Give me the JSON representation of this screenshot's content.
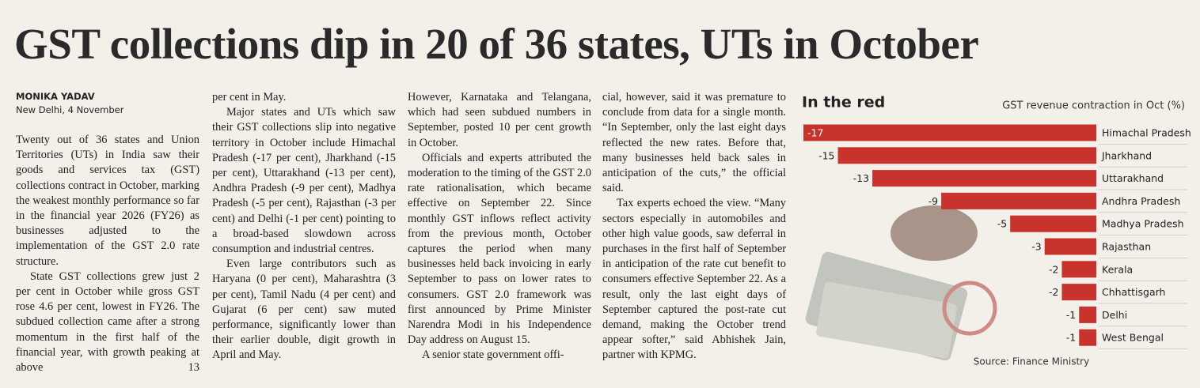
{
  "header": {
    "title": "GST collections dip in 20 of 36 states, UTs in October"
  },
  "article": {
    "byline": "MONIKA YADAV",
    "dateline": "New Delhi, 4 November",
    "columns": [
      [
        "Twenty out of 36 states and Union Territories (UTs) in India saw their goods and services tax (GST) collections contract in October, marking the weakest monthly performance so far in the financial year 2026 (FY26) as businesses adjusted to the implementation of the GST 2.0 rate structure.",
        "State GST collections grew just 2 per cent in October while gross GST rose 4.6 per cent, lowest in FY26. The subdued collection came after a strong momentum in the first half of the financial year, with growth peaking at above 13"
      ],
      [
        "per cent in May.",
        "Major states and UTs which saw their GST collections slip into negative territory in October include Himachal Pradesh (-17 per cent), Jharkhand (-15 per cent), Uttarakhand (-13 per cent), Andhra Pradesh (-9 per cent), Madhya Pradesh (-5 per cent), Rajasthan (-3 per cent) and Delhi (-1 per cent) pointing to a broad-based slowdown across consumption and industrial centres.",
        "Even large contributors such as Haryana (0 per cent), Maharashtra (3 per cent), Tamil Nadu (4 per cent) and Gujarat (6 per cent) saw muted performance, significantly lower than their earlier double, digit growth in April and May."
      ],
      [
        "However, Karnataka and Telangana, which had seen subdued numbers in September, posted 10 per cent growth in October.",
        "Officials and experts attributed the moderation to the timing of the GST 2.0 rate rationalisation, which became effective on September 22. Since monthly GST inflows reflect activity from the previous month, October captures the period when many businesses held back invoicing in early September to pass on lower rates to consumers. GST 2.0 framework was first announced by Prime Minister Narendra Modi in his Independence Day address on August 15.",
        "A senior state government offi-"
      ],
      [
        "cial, however, said it was premature to conclude from data for a single month. “In September, only the last eight days reflected the new rates. Before that, many businesses held back sales in anticipation of the cuts,” the official said.",
        "Tax experts echoed the view. “Many sectors especially in automobiles and other high value goods, saw deferral in purchases in the first half of September in anticipation of the rate cut benefit to consumers effective September 22. As a result, only the last eight days of September captured the post-rate cut demand, making the October trend appear softer,” said Abhishek Jain, partner with KPMG."
      ]
    ]
  },
  "chart_data": {
    "type": "bar",
    "orientation": "horizontal",
    "title": "In the red",
    "subtitle": "GST revenue contraction in Oct (%)",
    "source": "Source: Finance Ministry",
    "categories": [
      "Himachal Pradesh",
      "Jharkhand",
      "Uttarakhand",
      "Andhra Pradesh",
      "Madhya Pradesh",
      "Rajasthan",
      "Kerala",
      "Chhattisgarh",
      "Delhi",
      "West Bengal"
    ],
    "values": [
      -17,
      -15,
      -13,
      -9,
      -5,
      -3,
      -2,
      -2,
      -1,
      -1
    ],
    "color": "#c8332e",
    "xlim": [
      -17,
      0
    ]
  }
}
